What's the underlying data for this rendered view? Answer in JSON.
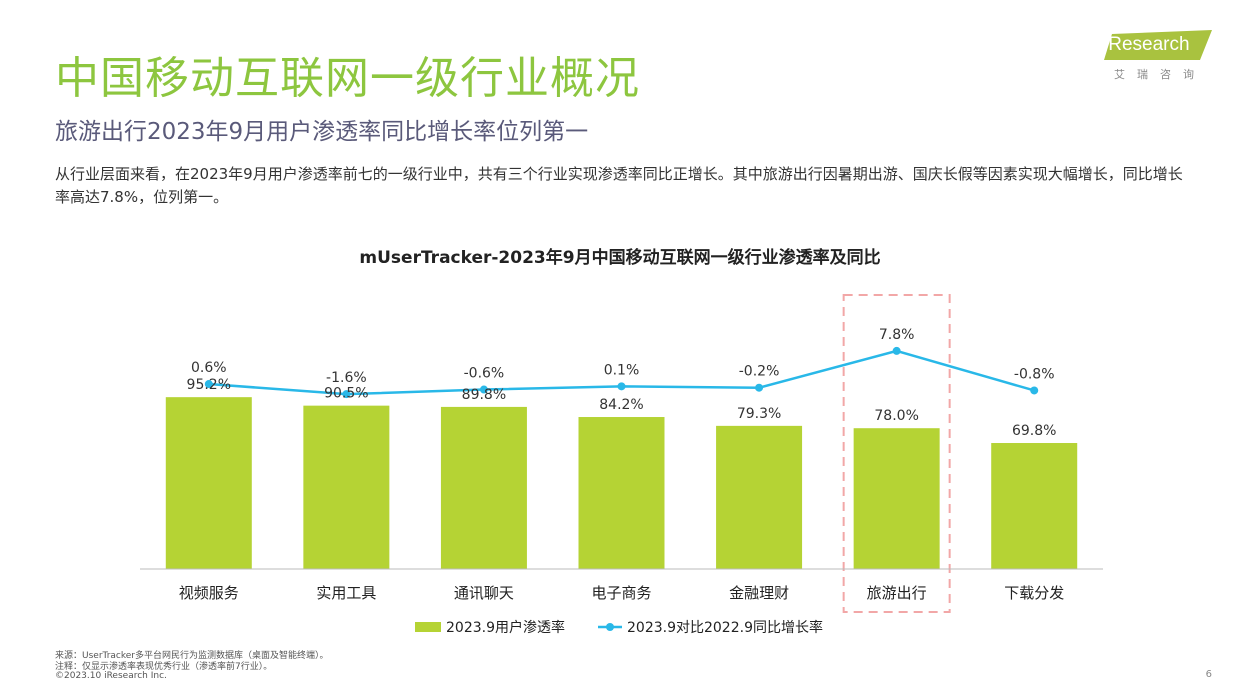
{
  "header": {
    "title": "中国移动互联网一级行业概况",
    "subtitle": "旅游出行2023年9月用户渗透率同比增长率位列第一",
    "description": "从行业层面来看，在2023年9月用户渗透率前七的一级行业中，共有三个行业实现渗透率同比正增长。其中旅游出行因暑期出游、国庆长假等因素实现大幅增长，同比增长率高达7.8%，位列第一。"
  },
  "logo": {
    "text": "iResearch",
    "sub": "艾瑞咨询"
  },
  "colors": {
    "title": "#8dc63f",
    "bar": "#b5d334",
    "line": "#29b8e8",
    "highlight_box": "#f2a7a7"
  },
  "chart_data": {
    "type": "bar",
    "title": "mUserTracker-2023年9月中国移动互联网一级行业渗透率及同比",
    "categories": [
      "视频服务",
      "实用工具",
      "通讯聊天",
      "电子商务",
      "金融理财",
      "旅游出行",
      "下载分发"
    ],
    "series": [
      {
        "name": "2023.9用户渗透率",
        "type": "bar",
        "values": [
          95.2,
          90.5,
          89.8,
          84.2,
          79.3,
          78.0,
          69.8
        ],
        "labels": [
          "95.2%",
          "90.5%",
          "89.8%",
          "84.2%",
          "79.3%",
          "78.0%",
          "69.8%"
        ]
      },
      {
        "name": "2023.9对比2022.9同比增长率",
        "type": "line",
        "values": [
          0.6,
          -1.6,
          -0.6,
          0.1,
          -0.2,
          7.8,
          -0.8
        ],
        "labels": [
          "0.6%",
          "-1.6%",
          "-0.6%",
          "0.1%",
          "-0.2%",
          "7.8%",
          "-0.8%"
        ]
      }
    ],
    "highlight_category": "旅游出行",
    "legend": "bottom"
  },
  "footer": {
    "source": "来源：UserTracker多平台网民行为监测数据库（桌面及智能终端）。",
    "note": "注释：仅显示渗透率表现优秀行业（渗透率前7行业）。",
    "copyright": "©2023.10 iResearch Inc.",
    "page": "6"
  }
}
